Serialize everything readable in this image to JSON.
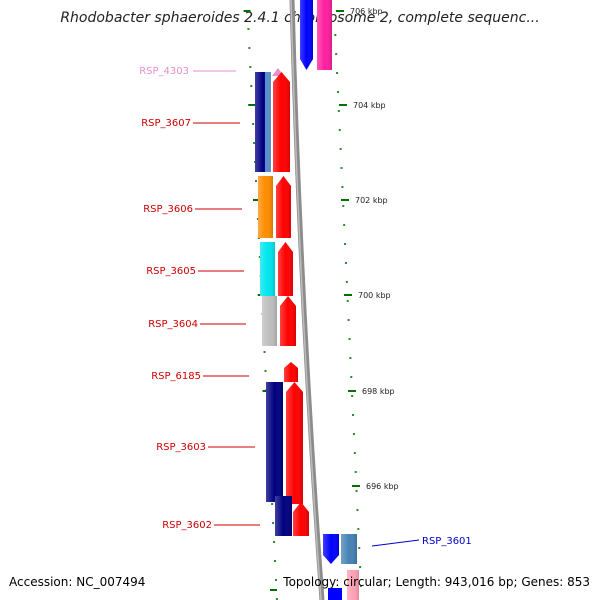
{
  "title": "Rhodobacter sphaeroides 2.4.1 chromosome 2, complete sequenc...",
  "footer": {
    "accession": "Accession: NC_007494",
    "topology": "Topology: circular; Length: 943,016 bp; Genes: 853"
  },
  "ticks": [
    {
      "label": "706 kbp"
    },
    {
      "label": "704 kbp"
    },
    {
      "label": "702 kbp"
    },
    {
      "label": "700 kbp"
    },
    {
      "label": "698 kbp"
    },
    {
      "label": "696 kbp"
    }
  ],
  "genes": [
    {
      "name": "RSP_4303",
      "color": "#e88fc8",
      "cog_color": null
    },
    {
      "name": "RSP_3607",
      "color": "#ff0000",
      "cog_color": "#000080"
    },
    {
      "name": "RSP_3606",
      "color": "#ff0000",
      "cog_color": "#ff8c00"
    },
    {
      "name": "RSP_3605",
      "color": "#ff0000",
      "cog_color": "#00e5ee"
    },
    {
      "name": "RSP_3604",
      "color": "#ff0000",
      "cog_color": "#bebebe"
    },
    {
      "name": "RSP_6185",
      "color": "#ff0000",
      "cog_color": null
    },
    {
      "name": "RSP_3603",
      "color": "#ff0000",
      "cog_color": "#000080"
    },
    {
      "name": "RSP_3602",
      "color": "#ff0000",
      "cog_color": "#000080"
    },
    {
      "name": "RSP_3601",
      "color": "#0000ff",
      "cog_color": "#4682b4"
    }
  ],
  "colors": {
    "reverse_label": "#cc0000",
    "forward_label": "#0000cc",
    "faded_label": "#e88fc8",
    "backbone": "#8c8c8c",
    "tick": "#007000"
  }
}
